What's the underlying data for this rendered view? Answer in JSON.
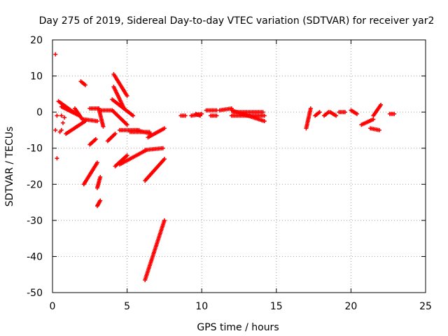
{
  "chart_data": {
    "type": "scatter",
    "title": "Day 275 of 2019, Sidereal Day-to-day VTEC variation (SDTVAR) for receiver yar2",
    "xlabel": "GPS time / hours",
    "ylabel": "SDTVAR / TECUs",
    "xlim": [
      0,
      25
    ],
    "ylim": [
      -50,
      20
    ],
    "xticks": [
      0,
      5,
      10,
      15,
      20,
      25
    ],
    "yticks": [
      -50,
      -40,
      -30,
      -20,
      -10,
      0,
      10,
      20
    ],
    "grid": true,
    "legend": "none",
    "marker": "+",
    "color": "#ff0000",
    "series": [
      {
        "points": [
          [
            0.2,
            16
          ],
          [
            0.2,
            -5
          ],
          [
            0.3,
            -12.8
          ],
          [
            0.3,
            -1
          ],
          [
            0.5,
            -5.5
          ],
          [
            0.6,
            -5
          ],
          [
            0.7,
            -3
          ],
          [
            0.6,
            -1
          ],
          [
            0.8,
            -1.5
          ]
        ]
      },
      {
        "segments": [
          [
            [
              0.4,
              3
            ],
            [
              1.4,
              0
            ]
          ],
          [
            [
              0.6,
              1.5
            ],
            [
              1.8,
              -1
            ]
          ],
          [
            [
              0.9,
              -6
            ],
            [
              2.2,
              -2.5
            ]
          ],
          [
            [
              1.5,
              1
            ],
            [
              2.0,
              -2
            ]
          ],
          [
            [
              1.9,
              8.5
            ],
            [
              2.2,
              7.5
            ]
          ],
          [
            [
              2.1,
              -2
            ],
            [
              3.0,
              -2.5
            ]
          ],
          [
            [
              2.1,
              -20
            ],
            [
              3.0,
              -14
            ]
          ],
          [
            [
              2.5,
              -9
            ],
            [
              2.9,
              -7.5
            ]
          ],
          [
            [
              2.5,
              1
            ],
            [
              3.1,
              1
            ]
          ],
          [
            [
              3.0,
              -26
            ],
            [
              3.2,
              -24.5
            ]
          ],
          [
            [
              3.0,
              -21
            ],
            [
              3.2,
              -18
            ]
          ],
          [
            [
              3.1,
              1
            ],
            [
              3.4,
              -4
            ]
          ],
          [
            [
              3.3,
              0.5
            ],
            [
              4.0,
              0.5
            ]
          ],
          [
            [
              3.7,
              -8
            ],
            [
              4.2,
              -6
            ]
          ],
          [
            [
              4.0,
              0.5
            ],
            [
              5.0,
              -3.5
            ]
          ],
          [
            [
              4.1,
              10.5
            ],
            [
              5.0,
              4.5
            ]
          ],
          [
            [
              4.1,
              7
            ],
            [
              4.8,
              1
            ]
          ],
          [
            [
              4.0,
              3.5
            ],
            [
              5.4,
              -1
            ]
          ],
          [
            [
              4.2,
              -15
            ],
            [
              5.0,
              -12
            ]
          ],
          [
            [
              4.5,
              -14.5
            ],
            [
              6.3,
              -10.5
            ]
          ],
          [
            [
              4.5,
              -5
            ],
            [
              5.8,
              -5
            ]
          ],
          [
            [
              5.2,
              -5.5
            ],
            [
              6.5,
              -5.5
            ]
          ],
          [
            [
              5.6,
              -5
            ],
            [
              6.6,
              -6
            ]
          ],
          [
            [
              6.2,
              -46.5
            ],
            [
              7.5,
              -30
            ]
          ],
          [
            [
              6.2,
              -19
            ],
            [
              7.5,
              -13
            ]
          ],
          [
            [
              6.2,
              -10.5
            ],
            [
              7.4,
              -10
            ]
          ],
          [
            [
              6.4,
              -7
            ],
            [
              7.5,
              -4.5
            ]
          ],
          [
            [
              8.6,
              -1
            ],
            [
              8.9,
              -1
            ]
          ],
          [
            [
              9.3,
              -1
            ],
            [
              10.0,
              -0.5
            ]
          ],
          [
            [
              9.6,
              -0.5
            ],
            [
              9.9,
              -1
            ]
          ],
          [
            [
              10.3,
              0.5
            ],
            [
              11.0,
              0.5
            ]
          ],
          [
            [
              10.6,
              -1
            ],
            [
              11.0,
              -1
            ]
          ],
          [
            [
              11.2,
              0.5
            ],
            [
              12.0,
              1
            ]
          ],
          [
            [
              12.0,
              0.5
            ],
            [
              14.2,
              -2.5
            ]
          ],
          [
            [
              12.0,
              -1
            ],
            [
              14.2,
              -1
            ]
          ],
          [
            [
              12.1,
              0
            ],
            [
              14.1,
              0
            ]
          ],
          [
            [
              17.0,
              -4.5
            ],
            [
              17.3,
              1
            ]
          ],
          [
            [
              17.6,
              -1
            ],
            [
              17.9,
              0
            ]
          ],
          [
            [
              18.2,
              -1
            ],
            [
              18.5,
              0
            ]
          ],
          [
            [
              18.6,
              0
            ],
            [
              19.0,
              -1
            ]
          ],
          [
            [
              19.2,
              0
            ],
            [
              19.6,
              0
            ]
          ],
          [
            [
              20.0,
              0.5
            ],
            [
              20.4,
              -0.5
            ]
          ],
          [
            [
              20.7,
              -3.5
            ],
            [
              21.5,
              -2
            ]
          ],
          [
            [
              21.5,
              -1
            ],
            [
              22.0,
              2
            ]
          ],
          [
            [
              21.3,
              -4.5
            ],
            [
              21.9,
              -5
            ]
          ],
          [
            [
              22.6,
              -0.5
            ],
            [
              22.9,
              -0.5
            ]
          ]
        ]
      }
    ]
  }
}
